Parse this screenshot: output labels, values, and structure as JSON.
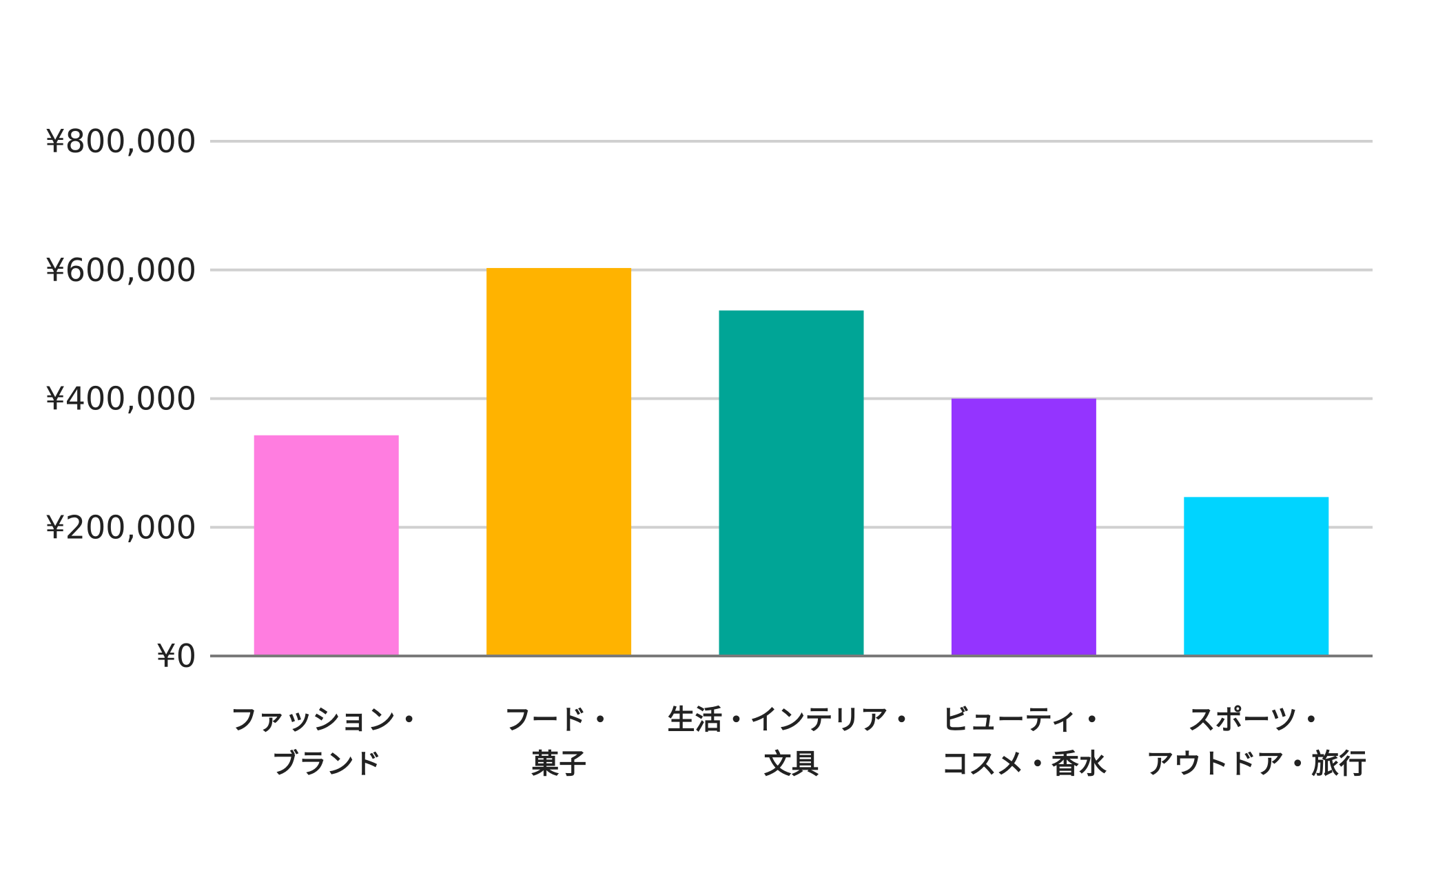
{
  "chart_data": {
    "type": "bar",
    "categories": [
      [
        "ファッション・",
        "ブランド"
      ],
      [
        "フード・",
        "菓子"
      ],
      [
        "生活・インテリア・",
        "文具"
      ],
      [
        "ビューティ・",
        "コスメ・香水"
      ],
      [
        "スポーツ・",
        "アウトドア・旅行"
      ]
    ],
    "values": [
      343000,
      603000,
      537000,
      400000,
      247000
    ],
    "colors": [
      "#ff7de0",
      "#ffb300",
      "#00a596",
      "#9434ff",
      "#00d4ff"
    ],
    "ylim": [
      0,
      800000
    ],
    "yticks": [
      0,
      200000,
      400000,
      600000,
      800000
    ],
    "ytick_labels": [
      "¥0",
      "¥200,000",
      "¥400,000",
      "¥600,000",
      "¥800,000"
    ],
    "grid": true,
    "legend": "none",
    "title": "",
    "xlabel": "",
    "ylabel": ""
  }
}
